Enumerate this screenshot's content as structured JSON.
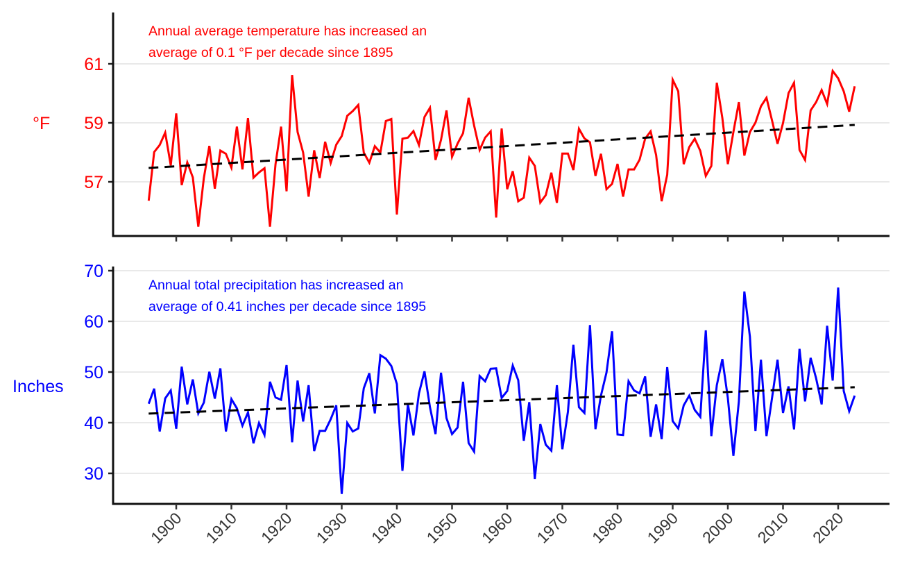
{
  "chart_data": [
    {
      "type": "line",
      "ylabel": "°F",
      "annotation": [
        "Annual average temperature has increased an",
        "average of 0.1 °F per decade since 1895"
      ],
      "color": "#ff0000",
      "x_start": 1895,
      "xlim": [
        1884,
        2029
      ],
      "ylim": [
        55.2,
        62.75
      ],
      "yticks": [
        "57",
        "59",
        "61"
      ],
      "grid": true,
      "values": [
        56.36,
        58.01,
        58.25,
        58.67,
        57.56,
        59.32,
        56.89,
        57.66,
        57.15,
        55.48,
        57.13,
        58.22,
        56.77,
        58.06,
        57.95,
        57.48,
        58.87,
        57.42,
        59.16,
        57.14,
        57.32,
        57.46,
        55.48,
        57.6,
        58.87,
        56.68,
        60.62,
        58.69,
        57.99,
        56.5,
        58.07,
        57.13,
        58.36,
        57.64,
        58.26,
        58.55,
        59.24,
        59.4,
        59.61,
        57.99,
        57.65,
        58.21,
        57.99,
        59.06,
        59.13,
        55.89,
        58.46,
        58.5,
        58.72,
        58.25,
        59.2,
        59.51,
        57.74,
        58.42,
        59.42,
        57.85,
        58.3,
        58.65,
        59.85,
        58.91,
        58.08,
        58.5,
        58.71,
        55.79,
        58.81,
        56.75,
        57.36,
        56.34,
        56.46,
        57.82,
        57.54,
        56.3,
        56.55,
        57.31,
        56.29,
        57.96,
        57.96,
        57.4,
        58.8,
        58.47,
        58.34,
        57.2,
        57.95,
        56.75,
        56.93,
        57.61,
        56.5,
        57.42,
        57.42,
        57.75,
        58.46,
        58.71,
        57.91,
        56.34,
        57.24,
        60.46,
        60.07,
        57.6,
        58.18,
        58.46,
        58.05,
        57.2,
        57.54,
        60.36,
        59.16,
        57.6,
        58.69,
        59.7,
        57.89,
        58.69,
        59.01,
        59.56,
        59.85,
        59.09,
        58.29,
        58.99,
        60.01,
        60.36,
        58.08,
        57.74,
        59.42,
        59.7,
        60.11,
        59.64,
        60.76,
        60.51,
        60.07,
        59.38,
        60.24
      ],
      "trend": {
        "start": 57.47,
        "end": 58.93,
        "style": "dashed",
        "color": "#000000"
      }
    },
    {
      "type": "line",
      "ylabel": "Inches",
      "annotation": [
        "Annual total precipitation has increased an",
        "average of 0.41 inches per decade since 1895"
      ],
      "color": "#0000ff",
      "x_start": 1895,
      "xlim": [
        1884,
        2029
      ],
      "ylim": [
        24.1,
        70.7
      ],
      "yticks": [
        "30",
        "40",
        "50",
        "60",
        "70"
      ],
      "xticks": [
        "1900",
        "1910",
        "1920",
        "1930",
        "1940",
        "1950",
        "1960",
        "1970",
        "1980",
        "1990",
        "2000",
        "2010",
        "2020"
      ],
      "grid": true,
      "values": [
        43.74,
        46.71,
        38.27,
        44.79,
        46.35,
        38.81,
        51.05,
        43.61,
        48.54,
        41.83,
        43.97,
        50.05,
        44.75,
        50.73,
        38.27,
        44.66,
        42.83,
        39.41,
        42.01,
        35.94,
        39.95,
        37.58,
        48.08,
        44.98,
        44.52,
        51.37,
        36.12,
        48.31,
        40.23,
        47.4,
        34.38,
        38.4,
        38.4,
        40.68,
        43.42,
        25.94,
        39.95,
        38.27,
        38.86,
        46.8,
        49.77,
        41.83,
        53.33,
        52.65,
        51.19,
        47.63,
        30.5,
        43.61,
        37.49,
        45.8,
        50.14,
        43.06,
        37.76,
        49.86,
        40.91,
        37.76,
        39.04,
        48.08,
        35.98,
        34.29,
        49.22,
        48.17,
        50.64,
        50.73,
        44.89,
        46.26,
        51.28,
        48.4,
        36.44,
        44.06,
        28.9,
        39.73,
        35.66,
        34.47,
        47.4,
        34.75,
        42.15,
        55.39,
        43.06,
        41.92,
        59.27,
        38.72,
        45.34,
        49.91,
        58.04,
        37.67,
        37.58,
        48.17,
        46.35,
        45.8,
        49.13,
        37.21,
        43.61,
        36.76,
        50.96,
        40.32,
        38.86,
        43.42,
        45.34,
        42.51,
        41.14,
        58.22,
        37.35,
        47.4,
        52.56,
        44.89,
        33.47,
        44.2,
        65.89,
        56.99,
        38.36,
        52.42,
        37.35,
        44.79,
        52.42,
        41.92,
        47.17,
        38.68,
        54.57,
        44.2,
        52.79,
        48.77,
        43.61,
        59.13,
        48.31,
        66.67,
        46.26,
        42.28,
        45.34
      ],
      "trend": {
        "start": 41.8,
        "end": 47.0,
        "style": "dashed",
        "color": "#000000"
      }
    }
  ]
}
